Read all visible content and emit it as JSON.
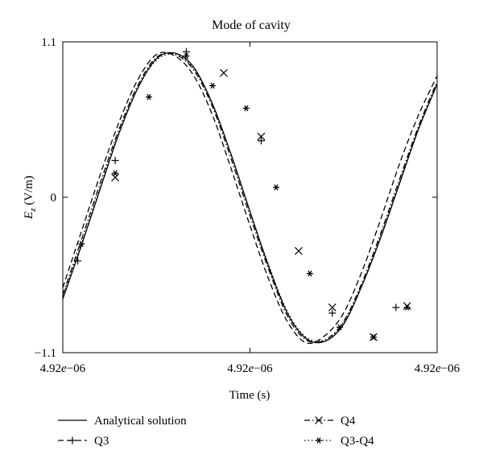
{
  "chart_data": {
    "type": "line",
    "title": "Mode of cavity",
    "xlabel": "Time (s)",
    "ylabel_main": "E",
    "ylabel_sub": "z",
    "ylabel_unit": " (V/m)",
    "xlim": [
      0,
      1
    ],
    "ylim": [
      -1.1,
      1.1
    ],
    "x_ticks": [
      {
        "value": 0,
        "label_main": "4.92",
        "label_e": "e",
        "label_exp": "−06"
      },
      {
        "value": 0.5,
        "label_main": "4.92",
        "label_e": "e",
        "label_exp": "−06"
      },
      {
        "value": 1,
        "label_main": "4.92",
        "label_e": "e",
        "label_exp": "−06"
      }
    ],
    "y_ticks": [
      {
        "value": -1.1,
        "label": "−1.1"
      },
      {
        "value": 0,
        "label": "0"
      },
      {
        "value": 1.1,
        "label": "1.1"
      }
    ],
    "grid": false,
    "legend_position": "bottom",
    "series": [
      {
        "name": "Analytical solution",
        "style": "solid",
        "marker": "none",
        "x": [
          0,
          0.05,
          0.1,
          0.15,
          0.2,
          0.25,
          0.3,
          0.35,
          0.4,
          0.45,
          0.5,
          0.55,
          0.6,
          0.65,
          0.7,
          0.75,
          0.8,
          0.85,
          0.9,
          0.95,
          1.0
        ],
        "y": [
          -0.72,
          -0.34,
          0.06,
          0.45,
          0.77,
          0.98,
          1.02,
          0.92,
          0.66,
          0.3,
          -0.1,
          -0.49,
          -0.82,
          -1.0,
          -1.02,
          -0.9,
          -0.62,
          -0.28,
          0.1,
          0.48,
          0.8
        ]
      },
      {
        "name": "Q3",
        "style": "dashed",
        "marker": "plus",
        "x": [
          0,
          0.05,
          0.1,
          0.15,
          0.2,
          0.25,
          0.3,
          0.35,
          0.4,
          0.45,
          0.5,
          0.55,
          0.6,
          0.65,
          0.7,
          0.75,
          0.8,
          0.85,
          0.9,
          0.95,
          1.0
        ],
        "y": [
          -0.64,
          -0.24,
          0.16,
          0.53,
          0.83,
          1.01,
          1.0,
          0.86,
          0.58,
          0.2,
          -0.2,
          -0.58,
          -0.88,
          -1.03,
          -0.98,
          -0.82,
          -0.52,
          -0.15,
          0.24,
          0.58,
          0.86
        ],
        "marker_x": [
          0.04,
          0.14,
          0.33,
          0.53,
          0.72,
          0.89
        ],
        "marker_y": [
          -0.45,
          0.26,
          1.03,
          0.4,
          -0.82,
          -0.78
        ]
      },
      {
        "name": "Q4",
        "style": "dashdot",
        "marker": "cross",
        "x": [
          0,
          0.05,
          0.1,
          0.15,
          0.2,
          0.25,
          0.3,
          0.35,
          0.4,
          0.45,
          0.5,
          0.55,
          0.6,
          0.65,
          0.7,
          0.75,
          0.8,
          0.85,
          0.9,
          0.95,
          1.0
        ],
        "y": [
          -0.69,
          -0.3,
          0.1,
          0.48,
          0.79,
          0.99,
          1.01,
          0.9,
          0.64,
          0.27,
          -0.13,
          -0.51,
          -0.84,
          -1.01,
          -1.01,
          -0.88,
          -0.6,
          -0.25,
          0.13,
          0.5,
          0.82
        ],
        "marker_x": [
          0.14,
          0.43,
          0.53,
          0.63,
          0.72,
          0.83,
          0.92
        ],
        "marker_y": [
          0.14,
          0.88,
          0.43,
          -0.38,
          -0.78,
          -0.99,
          -0.77
        ]
      },
      {
        "name": "Q3-Q4",
        "style": "dotted",
        "marker": "asterisk",
        "x": [
          0,
          0.05,
          0.1,
          0.15,
          0.2,
          0.25,
          0.3,
          0.35,
          0.4,
          0.45,
          0.5,
          0.55,
          0.6,
          0.65,
          0.7,
          0.75,
          0.8,
          0.85,
          0.9,
          0.95,
          1.0
        ],
        "y": [
          -0.7,
          -0.33,
          0.07,
          0.46,
          0.77,
          0.97,
          1.01,
          0.91,
          0.66,
          0.3,
          -0.1,
          -0.48,
          -0.81,
          -0.99,
          -1.01,
          -0.89,
          -0.62,
          -0.27,
          0.11,
          0.48,
          0.8
        ],
        "marker_x": [
          0.05,
          0.14,
          0.23,
          0.33,
          0.4,
          0.49,
          0.57,
          0.66,
          0.74,
          0.83,
          0.92
        ],
        "marker_y": [
          -0.33,
          0.17,
          0.71,
          1.0,
          0.79,
          0.63,
          0.07,
          -0.54,
          -0.92,
          -0.99,
          -0.78
        ]
      }
    ]
  }
}
